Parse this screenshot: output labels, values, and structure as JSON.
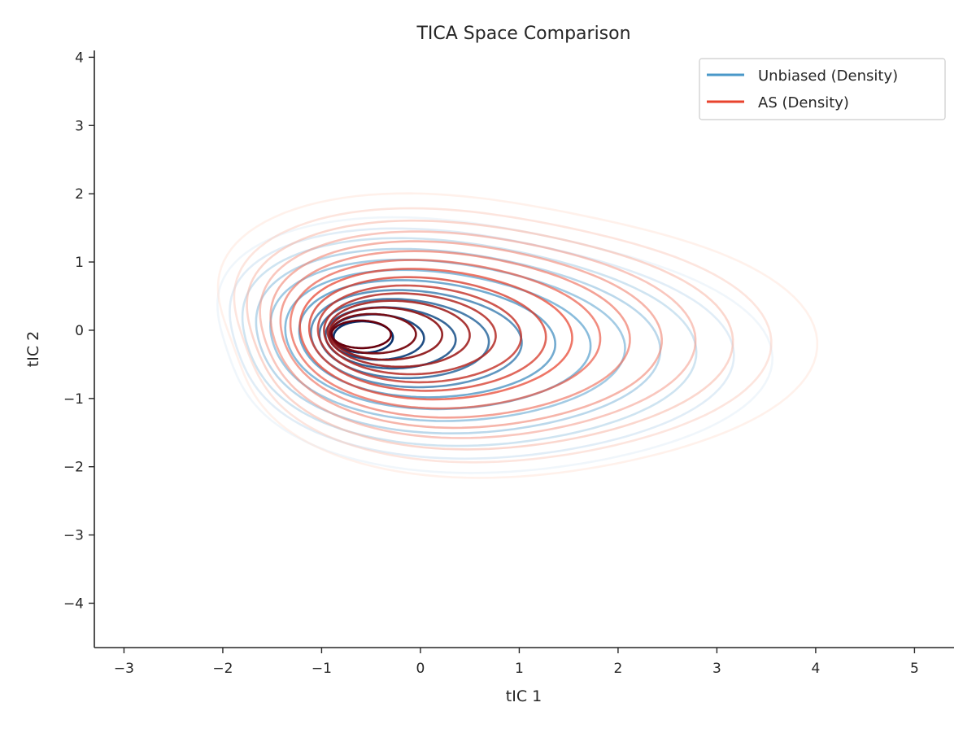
{
  "chart_data": {
    "type": "contour",
    "title": "TICA Space Comparison",
    "xlabel": "tIC 1",
    "ylabel": "tIC 2",
    "xlim": [
      -3.3,
      5.4
    ],
    "ylim": [
      -4.65,
      4.1
    ],
    "xticks": [
      -3,
      -2,
      -1,
      0,
      1,
      2,
      3,
      4,
      5
    ],
    "yticks": [
      -4,
      -3,
      -2,
      -1,
      0,
      1,
      2,
      3,
      4
    ],
    "xtick_labels": [
      "−3",
      "−2",
      "−1",
      "0",
      "1",
      "2",
      "3",
      "4",
      "5"
    ],
    "ytick_labels": [
      "−4",
      "−3",
      "−2",
      "−1",
      "0",
      "1",
      "2",
      "3",
      "4"
    ],
    "grid": false,
    "legend": {
      "position": "top-right",
      "entries": [
        {
          "label": "Unbiased (Density)",
          "color": "#4a98c9"
        },
        {
          "label": "AS (Density)",
          "color": "#e8432e"
        }
      ]
    },
    "series": [
      {
        "name": "Unbiased (Density)",
        "colormap": [
          "#deebf7",
          "#4a98c9",
          "#08306b"
        ],
        "mode": {
          "x": -0.65,
          "y": -0.1
        },
        "levels": [
          {
            "cx": 0.3,
            "cy": -0.2,
            "rx": 2.8,
            "ry": 2.55,
            "bulge": 0.62,
            "tilt": 0.3
          },
          {
            "cx": 0.25,
            "cy": -0.18,
            "rx": 2.55,
            "ry": 2.3,
            "bulge": 0.55,
            "tilt": 0.3
          },
          {
            "cx": 0.2,
            "cy": -0.16,
            "rx": 2.3,
            "ry": 2.08,
            "bulge": 0.48,
            "tilt": 0.3
          },
          {
            "cx": 0.15,
            "cy": -0.15,
            "rx": 2.05,
            "ry": 1.85,
            "bulge": 0.42,
            "tilt": 0.3
          },
          {
            "cx": 0.1,
            "cy": -0.14,
            "rx": 1.8,
            "ry": 1.62,
            "bulge": 0.36,
            "tilt": 0.3
          },
          {
            "cx": 0.05,
            "cy": -0.13,
            "rx": 1.55,
            "ry": 1.4,
            "bulge": 0.3,
            "tilt": 0.3
          },
          {
            "cx": -0.02,
            "cy": -0.12,
            "rx": 1.3,
            "ry": 1.18,
            "bulge": 0.25,
            "tilt": 0.3
          },
          {
            "cx": -0.1,
            "cy": -0.12,
            "rx": 1.07,
            "ry": 0.98,
            "bulge": 0.2,
            "tilt": 0.3
          },
          {
            "cx": -0.2,
            "cy": -0.12,
            "rx": 0.86,
            "ry": 0.8,
            "bulge": 0.15,
            "tilt": 0.3
          },
          {
            "cx": -0.32,
            "cy": -0.11,
            "rx": 0.66,
            "ry": 0.62,
            "bulge": 0.1,
            "tilt": 0.25
          },
          {
            "cx": -0.45,
            "cy": -0.1,
            "rx": 0.48,
            "ry": 0.46,
            "bulge": 0.05,
            "tilt": 0.2
          },
          {
            "cx": -0.58,
            "cy": -0.1,
            "rx": 0.3,
            "ry": 0.32,
            "bulge": 0.02,
            "tilt": 0.1
          }
        ]
      },
      {
        "name": "AS (Density)",
        "colormap": [
          "#fee0d2",
          "#e8432e",
          "#67000d"
        ],
        "mode": {
          "x": -0.65,
          "y": -0.05
        },
        "levels": [
          {
            "cx": 0.45,
            "cy": -0.05,
            "rx": 3.0,
            "ry": 2.85,
            "bulge": 0.7,
            "tilt": 0.2
          },
          {
            "cx": 0.4,
            "cy": -0.05,
            "rx": 2.7,
            "ry": 2.55,
            "bulge": 0.62,
            "tilt": 0.2
          },
          {
            "cx": 0.35,
            "cy": -0.05,
            "rx": 2.45,
            "ry": 2.3,
            "bulge": 0.55,
            "tilt": 0.2
          },
          {
            "cx": 0.3,
            "cy": -0.05,
            "rx": 2.2,
            "ry": 2.08,
            "bulge": 0.48,
            "tilt": 0.2
          },
          {
            "cx": 0.24,
            "cy": -0.05,
            "rx": 1.98,
            "ry": 1.88,
            "bulge": 0.42,
            "tilt": 0.22
          },
          {
            "cx": 0.18,
            "cy": -0.05,
            "rx": 1.77,
            "ry": 1.68,
            "bulge": 0.36,
            "tilt": 0.22
          },
          {
            "cx": 0.12,
            "cy": -0.05,
            "rx": 1.57,
            "ry": 1.5,
            "bulge": 0.31,
            "tilt": 0.22
          },
          {
            "cx": 0.06,
            "cy": -0.05,
            "rx": 1.38,
            "ry": 1.32,
            "bulge": 0.26,
            "tilt": 0.22
          },
          {
            "cx": 0.0,
            "cy": -0.05,
            "rx": 1.2,
            "ry": 1.15,
            "bulge": 0.22,
            "tilt": 0.22
          },
          {
            "cx": -0.06,
            "cy": -0.05,
            "rx": 1.03,
            "ry": 0.98,
            "bulge": 0.18,
            "tilt": 0.22
          },
          {
            "cx": -0.14,
            "cy": -0.05,
            "rx": 0.87,
            "ry": 0.82,
            "bulge": 0.14,
            "tilt": 0.2
          },
          {
            "cx": -0.24,
            "cy": -0.05,
            "rx": 0.72,
            "ry": 0.67,
            "bulge": 0.1,
            "tilt": 0.18
          },
          {
            "cx": -0.36,
            "cy": -0.05,
            "rx": 0.57,
            "ry": 0.53,
            "bulge": 0.07,
            "tilt": 0.15
          },
          {
            "cx": -0.48,
            "cy": -0.05,
            "rx": 0.43,
            "ry": 0.4,
            "bulge": 0.04,
            "tilt": 0.12
          },
          {
            "cx": -0.6,
            "cy": -0.06,
            "rx": 0.3,
            "ry": 0.28,
            "bulge": 0.02,
            "tilt": 0.08
          }
        ]
      }
    ]
  }
}
